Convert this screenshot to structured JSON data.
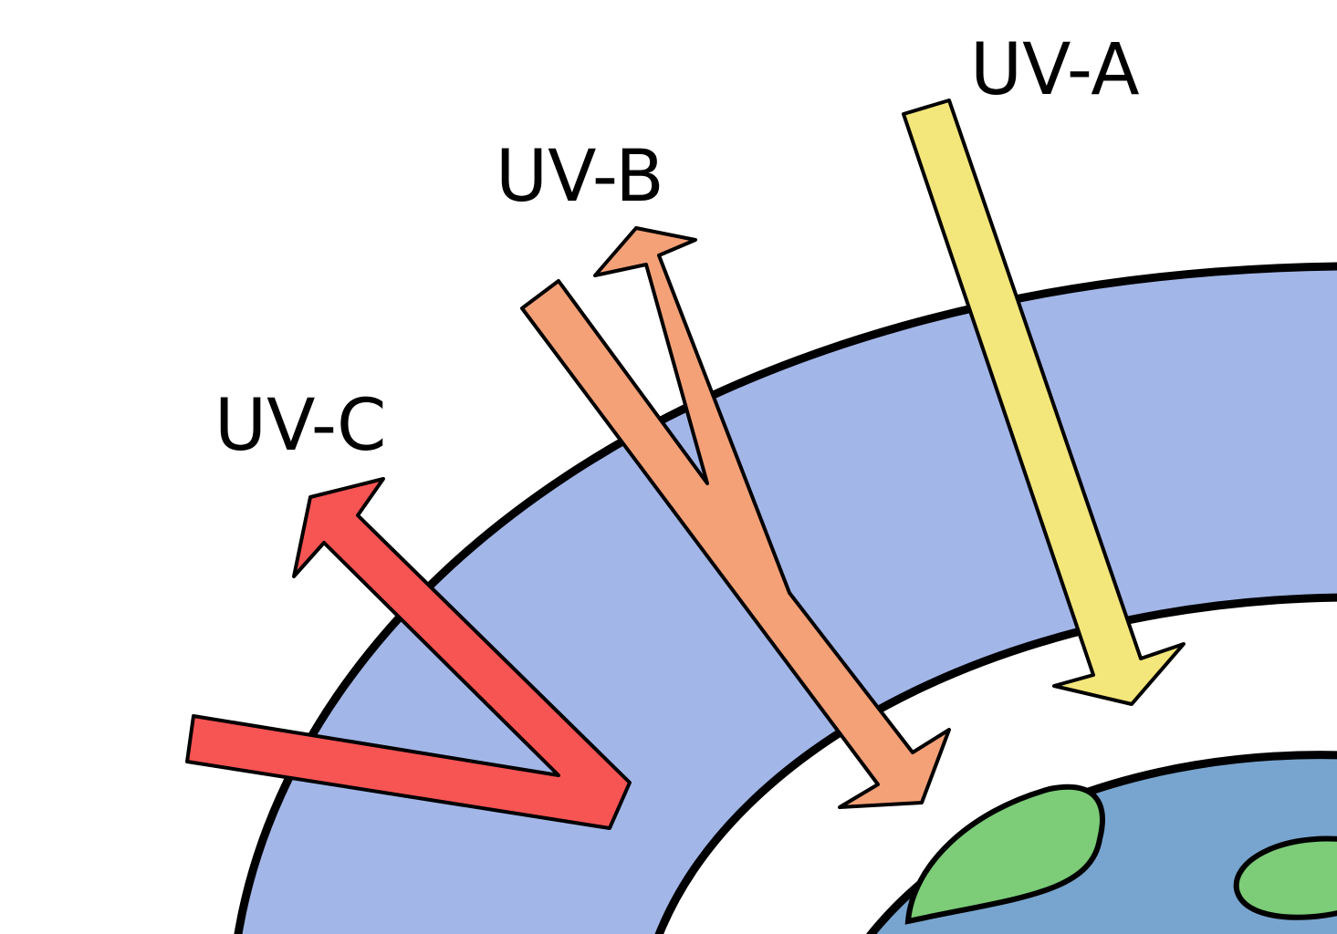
{
  "labels": {
    "uv_a": "UV-A",
    "uv_b": "UV-B",
    "uv_c": "UV-C"
  }
}
